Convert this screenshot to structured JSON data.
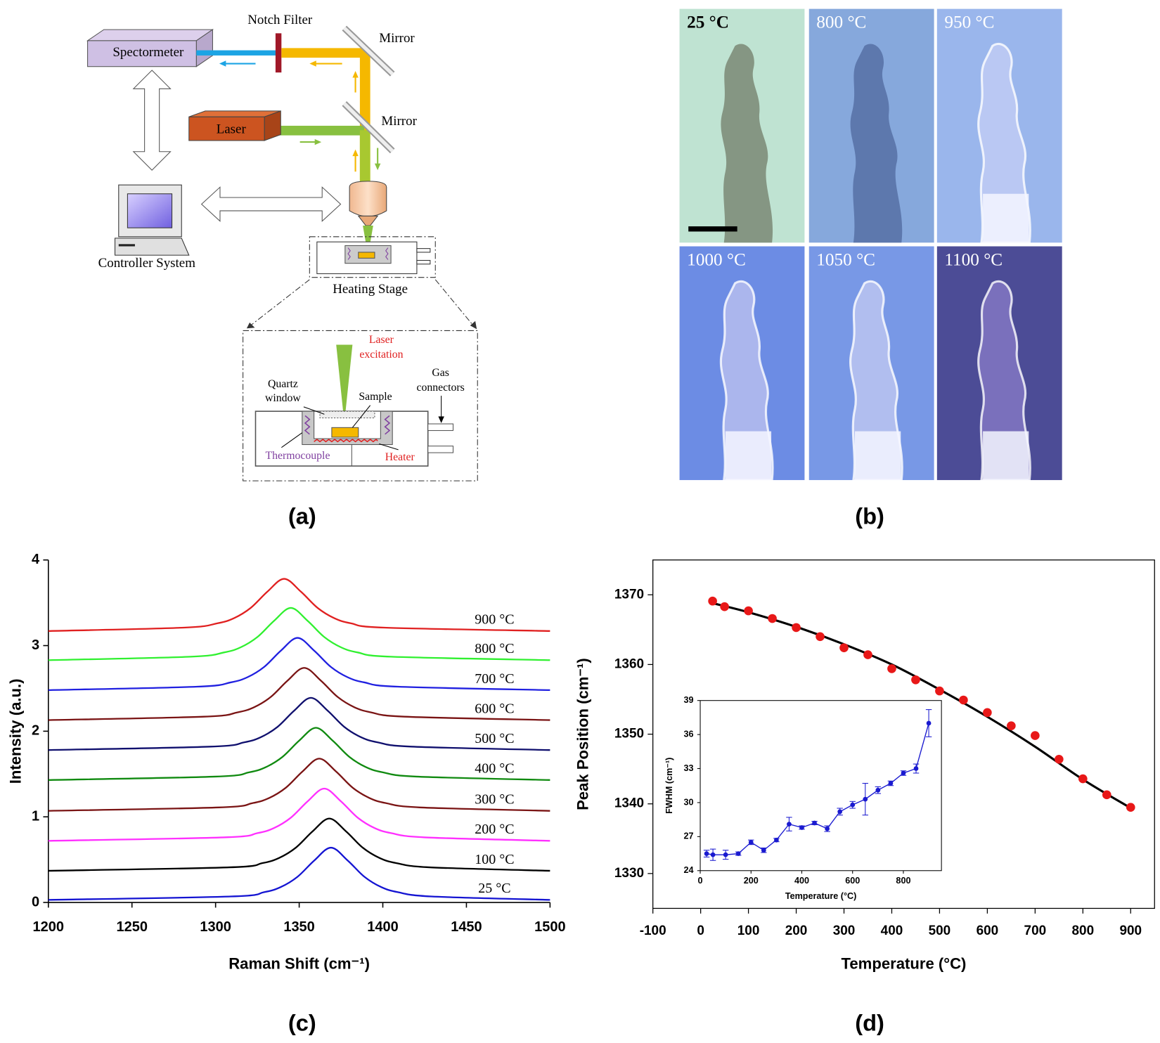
{
  "diagram": {
    "caption": "(a)",
    "labels": {
      "spectrometer": "Spectormeter",
      "notch_filter": "Notch Filter",
      "mirror_top": "Mirror",
      "mirror_bottom": "Mirror",
      "laser": "Laser",
      "controller": "Controller System",
      "heating_stage": "Heating Stage",
      "laser_excitation": [
        "Laser",
        "excitation"
      ],
      "quartz_window": [
        "Quartz",
        "window"
      ],
      "sample": "Sample",
      "gas_connectors": [
        "Gas",
        "connectors"
      ],
      "thermocouple": "Thermocouple",
      "heater": "Heater"
    }
  },
  "micrographs": {
    "caption": "(b)",
    "temperatures": [
      "25 °C",
      "800 °C",
      "950 °C",
      "1000 °C",
      "1050 °C",
      "1100 °C"
    ]
  },
  "chart_data": [
    {
      "type": "line",
      "caption": "(c)",
      "x_label": "Raman Shift (cm⁻¹)",
      "y_label": "Intensity (a.u.)",
      "xlim": [
        1200,
        1500
      ],
      "xticks": [
        1200,
        1250,
        1300,
        1350,
        1400,
        1450,
        1500
      ],
      "ylim": [
        0,
        4
      ],
      "yticks": [
        0,
        1,
        2,
        3,
        4
      ],
      "series": [
        {
          "name": "25 °C",
          "color": "#1414d2",
          "x": [
            1200,
            1309,
            1329,
            1339,
            1349,
            1359,
            1369,
            1379,
            1389,
            1399,
            1409,
            1429,
            1500
          ],
          "values": [
            0.03,
            0.07,
            0.12,
            0.18,
            0.3,
            0.49,
            0.64,
            0.49,
            0.3,
            0.18,
            0.12,
            0.07,
            0.03
          ]
        },
        {
          "name": "100 °C",
          "color": "#000000",
          "x": [
            1200,
            1308,
            1328,
            1338,
            1348,
            1358,
            1368,
            1378,
            1388,
            1398,
            1408,
            1428,
            1500
          ],
          "values": [
            0.37,
            0.41,
            0.46,
            0.52,
            0.64,
            0.83,
            0.98,
            0.83,
            0.64,
            0.52,
            0.46,
            0.41,
            0.37
          ]
        },
        {
          "name": "200 °C",
          "color": "#ff30ff",
          "x": [
            1200,
            1305,
            1325,
            1335,
            1345,
            1355,
            1365,
            1375,
            1385,
            1395,
            1405,
            1425,
            1500
          ],
          "values": [
            0.72,
            0.76,
            0.81,
            0.87,
            0.99,
            1.18,
            1.33,
            1.18,
            0.99,
            0.87,
            0.81,
            0.76,
            0.72
          ]
        },
        {
          "name": "300 °C",
          "color": "#7a1414",
          "x": [
            1200,
            1302,
            1322,
            1332,
            1342,
            1352,
            1362,
            1372,
            1382,
            1392,
            1402,
            1422,
            1500
          ],
          "values": [
            1.07,
            1.11,
            1.16,
            1.22,
            1.34,
            1.53,
            1.68,
            1.53,
            1.34,
            1.22,
            1.16,
            1.11,
            1.07
          ]
        },
        {
          "name": "400 °C",
          "color": "#108a10",
          "x": [
            1200,
            1300,
            1320,
            1330,
            1340,
            1350,
            1360,
            1370,
            1380,
            1390,
            1400,
            1420,
            1500
          ],
          "values": [
            1.43,
            1.47,
            1.52,
            1.58,
            1.7,
            1.89,
            2.04,
            1.89,
            1.7,
            1.58,
            1.52,
            1.47,
            1.43
          ]
        },
        {
          "name": "500 °C",
          "color": "#10106e",
          "x": [
            1200,
            1297,
            1317,
            1327,
            1337,
            1347,
            1357,
            1367,
            1377,
            1387,
            1397,
            1417,
            1500
          ],
          "values": [
            1.78,
            1.82,
            1.87,
            1.93,
            2.05,
            2.24,
            2.39,
            2.24,
            2.05,
            1.93,
            1.87,
            1.82,
            1.78
          ]
        },
        {
          "name": "600 °C",
          "color": "#7a1414",
          "x": [
            1200,
            1293,
            1313,
            1323,
            1333,
            1343,
            1353,
            1363,
            1373,
            1383,
            1393,
            1413,
            1500
          ],
          "values": [
            2.13,
            2.17,
            2.22,
            2.28,
            2.4,
            2.59,
            2.74,
            2.59,
            2.4,
            2.28,
            2.22,
            2.17,
            2.13
          ]
        },
        {
          "name": "700 °C",
          "color": "#2020e0",
          "x": [
            1200,
            1289,
            1309,
            1319,
            1329,
            1339,
            1349,
            1359,
            1369,
            1379,
            1389,
            1409,
            1500
          ],
          "values": [
            2.48,
            2.52,
            2.57,
            2.63,
            2.75,
            2.94,
            3.09,
            2.94,
            2.75,
            2.63,
            2.57,
            2.52,
            2.48
          ]
        },
        {
          "name": "800 °C",
          "color": "#30f030",
          "x": [
            1200,
            1285,
            1305,
            1315,
            1325,
            1335,
            1345,
            1355,
            1365,
            1375,
            1385,
            1405,
            1500
          ],
          "values": [
            2.83,
            2.87,
            2.92,
            2.98,
            3.1,
            3.29,
            3.44,
            3.29,
            3.1,
            2.98,
            2.92,
            2.87,
            2.83
          ]
        },
        {
          "name": "900 °C",
          "color": "#e02020",
          "x": [
            1200,
            1281,
            1301,
            1311,
            1321,
            1331,
            1341,
            1351,
            1361,
            1371,
            1381,
            1401,
            1500
          ],
          "values": [
            3.17,
            3.21,
            3.26,
            3.32,
            3.44,
            3.63,
            3.78,
            3.63,
            3.44,
            3.32,
            3.26,
            3.21,
            3.17
          ]
        }
      ]
    },
    {
      "type": "scatter",
      "caption": "(d)",
      "x_label": "Temperature (°C)",
      "y_label": "Peak Position (cm⁻¹)",
      "xlim": [
        -100,
        950
      ],
      "xticks": [
        -100,
        0,
        100,
        200,
        300,
        400,
        500,
        600,
        700,
        800,
        900
      ],
      "ylim": [
        1325,
        1375
      ],
      "yticks": [
        1330,
        1340,
        1350,
        1360,
        1370
      ],
      "series": [
        {
          "mode": "markers",
          "color": "#e81818",
          "x": [
            25,
            50,
            100,
            150,
            200,
            250,
            300,
            350,
            400,
            450,
            500,
            550,
            600,
            650,
            700,
            750,
            800,
            850,
            900
          ],
          "values": [
            1369.1,
            1368.3,
            1367.7,
            1366.6,
            1365.3,
            1364.0,
            1362.4,
            1361.4,
            1359.4,
            1357.8,
            1356.2,
            1354.9,
            1353.1,
            1351.2,
            1349.8,
            1346.4,
            1343.6,
            1341.3,
            1339.5
          ]
        },
        {
          "mode": "line",
          "color": "#000000",
          "x": [
            25,
            100,
            200,
            300,
            400,
            500,
            600,
            700,
            800,
            900
          ],
          "values": [
            1368.8,
            1367.5,
            1365.4,
            1362.9,
            1360.0,
            1356.4,
            1352.5,
            1348.2,
            1343.5,
            1339.4
          ]
        }
      ],
      "inset": {
        "type": "line",
        "x_label": "Temperature (°C)",
        "y_label": "FWHM (cm⁻¹)",
        "xlim": [
          0,
          950
        ],
        "xticks": [
          0,
          200,
          400,
          600,
          800
        ],
        "ylim": [
          24,
          39
        ],
        "yticks": [
          24,
          27,
          30,
          33,
          36,
          39
        ],
        "series": [
          {
            "color": "#1a1ad0",
            "x": [
              25,
              50,
              100,
              150,
              200,
              250,
              300,
              350,
              400,
              450,
              500,
              550,
              600,
              650,
              700,
              750,
              800,
              850,
              900
            ],
            "values": [
              25.5,
              25.4,
              25.4,
              25.5,
              26.5,
              25.8,
              26.7,
              28.1,
              27.8,
              28.2,
              27.7,
              29.2,
              29.8,
              30.3,
              31.1,
              31.7,
              32.6,
              33.0,
              37.0
            ],
            "errors": [
              0.3,
              0.5,
              0.4,
              0.15,
              0.2,
              0.2,
              0.15,
              0.6,
              0.15,
              0.15,
              0.25,
              0.3,
              0.3,
              1.4,
              0.3,
              0.2,
              0.2,
              0.4,
              1.2
            ]
          }
        ]
      }
    }
  ]
}
